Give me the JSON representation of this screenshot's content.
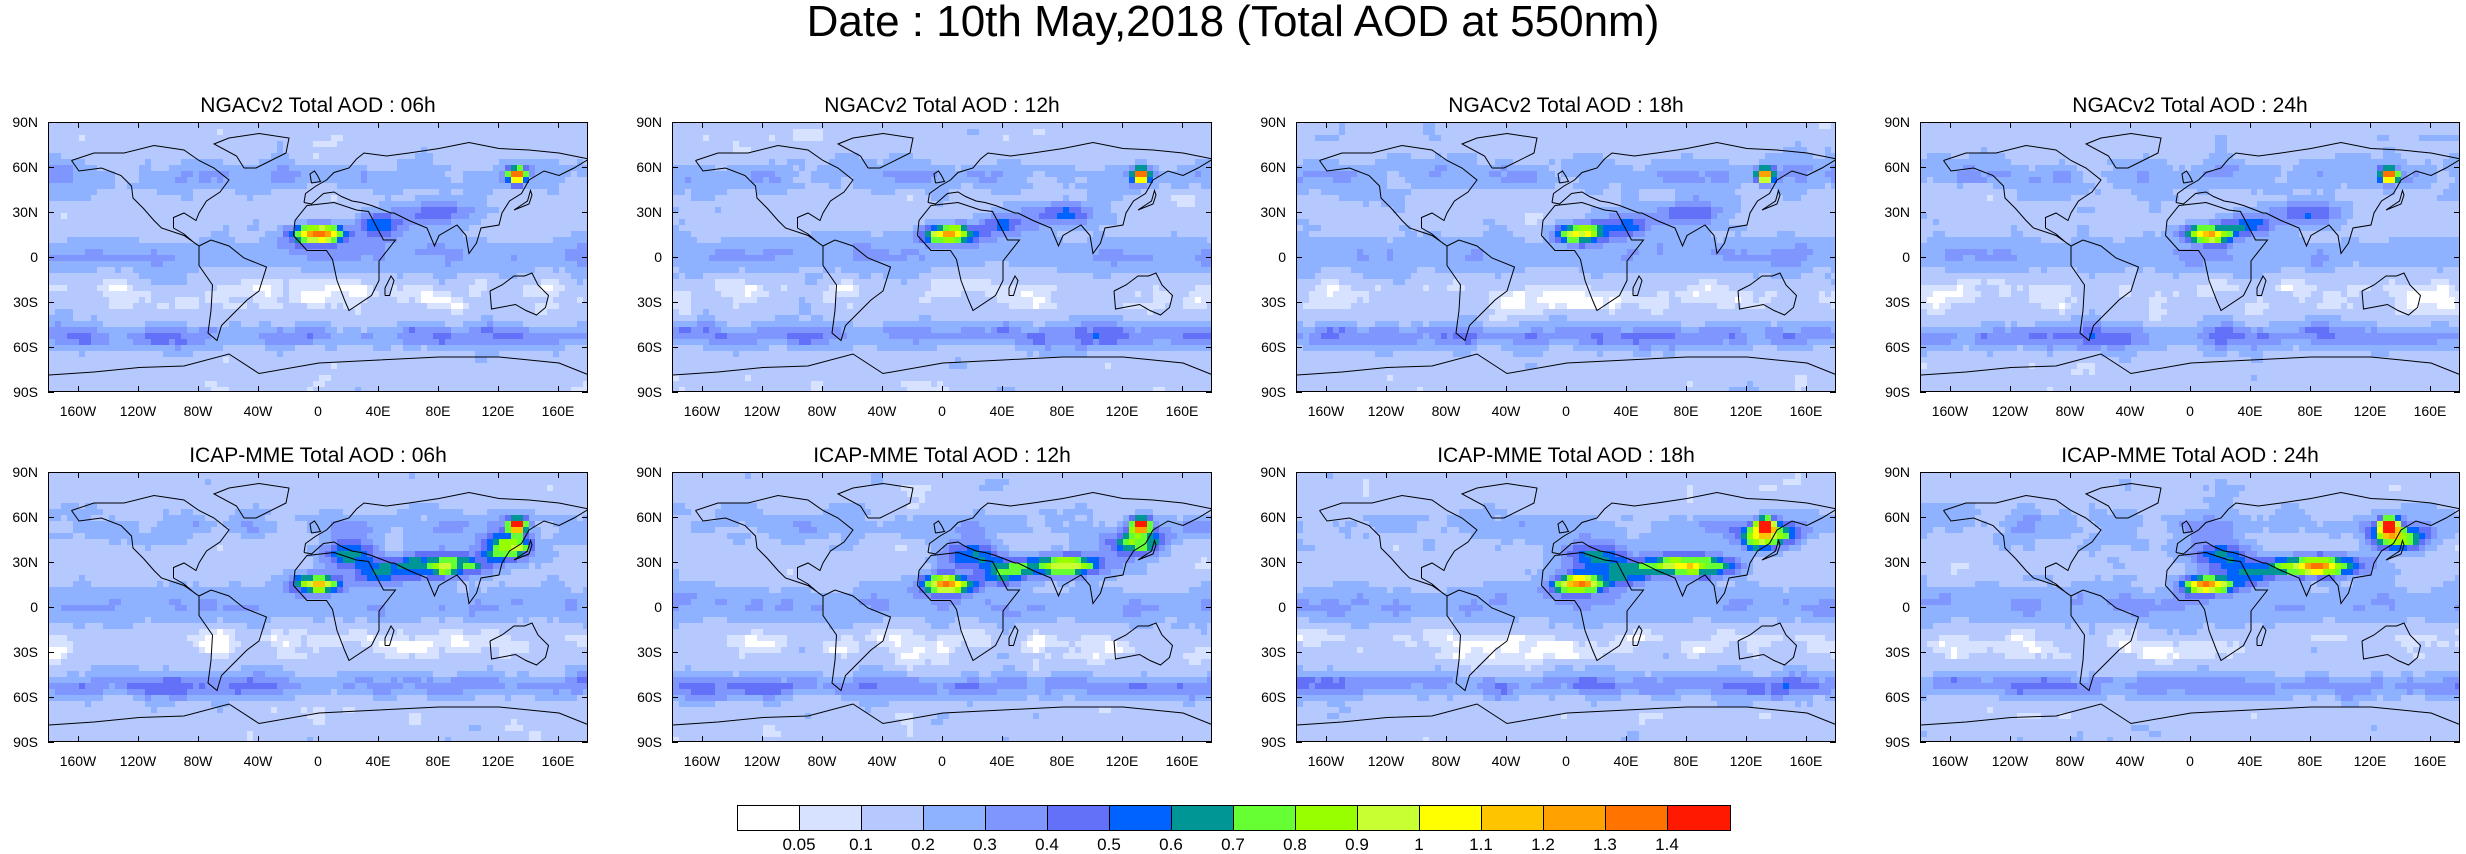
{
  "title": "Date : 10th May,2018 (Total AOD at 550nm)",
  "panels": [
    {
      "title": "NGACv2 Total AOD : 06h",
      "model": "NGACv2",
      "hour": "06h"
    },
    {
      "title": "NGACv2 Total AOD : 12h",
      "model": "NGACv2",
      "hour": "12h"
    },
    {
      "title": "NGACv2 Total AOD : 18h",
      "model": "NGACv2",
      "hour": "18h"
    },
    {
      "title": "NGACv2 Total AOD : 24h",
      "model": "NGACv2",
      "hour": "24h"
    },
    {
      "title": "ICAP-MME Total AOD : 06h",
      "model": "ICAP-MME",
      "hour": "06h"
    },
    {
      "title": "ICAP-MME Total AOD : 12h",
      "model": "ICAP-MME",
      "hour": "12h"
    },
    {
      "title": "ICAP-MME Total AOD : 18h",
      "model": "ICAP-MME",
      "hour": "18h"
    },
    {
      "title": "ICAP-MME Total AOD : 24h",
      "model": "ICAP-MME",
      "hour": "24h"
    }
  ],
  "lat_labels": [
    "90N",
    "60N",
    "30N",
    "0",
    "30S",
    "60S",
    "90S"
  ],
  "lon_labels": [
    "160W",
    "120W",
    "80W",
    "40W",
    "0",
    "40E",
    "80E",
    "120E",
    "160E"
  ],
  "colorbar": {
    "colors": [
      "#ffffff",
      "#d6e2ff",
      "#b5c9ff",
      "#8eb2ff",
      "#7f96ff",
      "#6370f8",
      "#0063ff",
      "#009696",
      "#66ff33",
      "#96ff00",
      "#c8ff33",
      "#ffff00",
      "#ffc400",
      "#ffa100",
      "#ff7400",
      "#ff1900"
    ],
    "labels": [
      "0.05",
      "0.1",
      "0.2",
      "0.3",
      "0.4",
      "0.5",
      "0.6",
      "0.7",
      "0.8",
      "0.9",
      "1",
      "1.1",
      "1.2",
      "1.3",
      "1.4"
    ]
  }
}
